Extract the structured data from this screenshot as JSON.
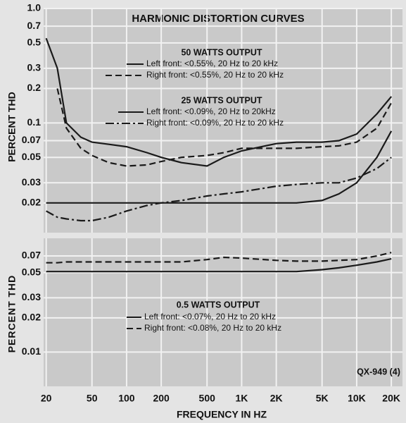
{
  "chart_data": [
    {
      "type": "line",
      "title": "HARMONIC DISTORTION CURVES",
      "y_label": "PERCENT THD",
      "xlog": true,
      "ylog": true,
      "grid": true,
      "xlim": [
        19,
        25000
      ],
      "ylim": [
        0.011,
        1
      ],
      "yticks": [
        {
          "value": 1,
          "label": "1.0"
        },
        0.7,
        0.5,
        0.3,
        0.2,
        0.1,
        0.07,
        0.05,
        0.03,
        0.02
      ],
      "annotations": [
        "50 WATTS OUTPUT",
        "25 WATTS OUTPUT"
      ],
      "x": [
        20,
        25,
        30,
        40,
        50,
        70,
        100,
        150,
        200,
        300,
        500,
        700,
        1000,
        2000,
        3000,
        5000,
        7000,
        10000,
        15000,
        20000
      ],
      "series": [
        {
          "name": "Left front: <0.55%, 20 Hz to 20 kHz",
          "color": "#1a1a1a",
          "dash": "solid",
          "values": [
            0.55,
            0.3,
            0.1,
            0.075,
            0.068,
            0.065,
            0.062,
            0.055,
            0.05,
            0.045,
            0.042,
            0.05,
            0.057,
            0.066,
            0.068,
            0.068,
            0.07,
            0.08,
            0.12,
            0.17
          ]
        },
        {
          "name": "Right front: <0.55%, 20 Hz to 20 kHz",
          "color": "#1a1a1a",
          "dash": "dashed",
          "values": [
            null,
            0.2,
            0.09,
            0.06,
            0.052,
            0.045,
            0.042,
            0.043,
            0.046,
            0.05,
            0.052,
            0.055,
            0.06,
            0.06,
            0.06,
            0.062,
            0.063,
            0.068,
            0.09,
            0.15
          ]
        },
        {
          "name": "Left front: <0.09%, 20 Hz to 20kHz",
          "color": "#1a1a1a",
          "dash": "solid",
          "values": [
            0.02,
            0.02,
            0.02,
            0.02,
            0.02,
            0.02,
            0.02,
            0.02,
            0.02,
            0.02,
            0.02,
            0.02,
            0.02,
            0.02,
            0.02,
            0.021,
            0.024,
            0.03,
            0.05,
            0.085
          ]
        },
        {
          "name": "Right front: <0.09%, 20 Hz to 20 kHz",
          "color": "#1a1a1a",
          "dash": "dashdot",
          "values": [
            0.017,
            0.015,
            0.0145,
            0.014,
            0.014,
            0.015,
            0.017,
            0.019,
            0.02,
            0.021,
            0.023,
            0.024,
            0.025,
            0.028,
            0.029,
            0.03,
            0.03,
            0.033,
            0.04,
            0.05
          ]
        }
      ]
    },
    {
      "type": "line",
      "y_label": "PERCENT THD",
      "x_label": "FREQUENCY IN HZ",
      "xlog": true,
      "ylog": true,
      "grid": true,
      "xlim": [
        19,
        25000
      ],
      "ylim": [
        0.005,
        0.1
      ],
      "xticks": [
        20,
        50,
        100,
        200,
        500,
        {
          "value": 1000,
          "label": "1K"
        },
        {
          "value": 2000,
          "label": "2K"
        },
        {
          "value": 5000,
          "label": "5K"
        },
        {
          "value": 10000,
          "label": "10K"
        },
        {
          "value": 20000,
          "label": "20K"
        }
      ],
      "yticks": [
        0.07,
        0.05,
        0.03,
        0.02,
        0.01
      ],
      "annotations": [
        "0.5 WATTS OUTPUT",
        "QX-949 (4)"
      ],
      "x": [
        20,
        25,
        30,
        40,
        50,
        70,
        100,
        150,
        200,
        300,
        500,
        700,
        1000,
        2000,
        3000,
        5000,
        7000,
        10000,
        15000,
        20000
      ],
      "series": [
        {
          "name": "Left front: <0.07%, 20 Hz to 20 kHz",
          "color": "#1a1a1a",
          "dash": "solid",
          "values": [
            0.051,
            0.051,
            0.051,
            0.051,
            0.051,
            0.051,
            0.051,
            0.051,
            0.051,
            0.051,
            0.051,
            0.051,
            0.051,
            0.051,
            0.051,
            0.053,
            0.055,
            0.058,
            0.062,
            0.066
          ]
        },
        {
          "name": "Right front: <0.08%, 20 Hz to 20 kHz",
          "color": "#1a1a1a",
          "dash": "dashed",
          "values": [
            0.061,
            0.061,
            0.062,
            0.062,
            0.062,
            0.062,
            0.062,
            0.062,
            0.062,
            0.062,
            0.065,
            0.068,
            0.067,
            0.064,
            0.063,
            0.063,
            0.064,
            0.065,
            0.07,
            0.075
          ]
        }
      ]
    }
  ]
}
